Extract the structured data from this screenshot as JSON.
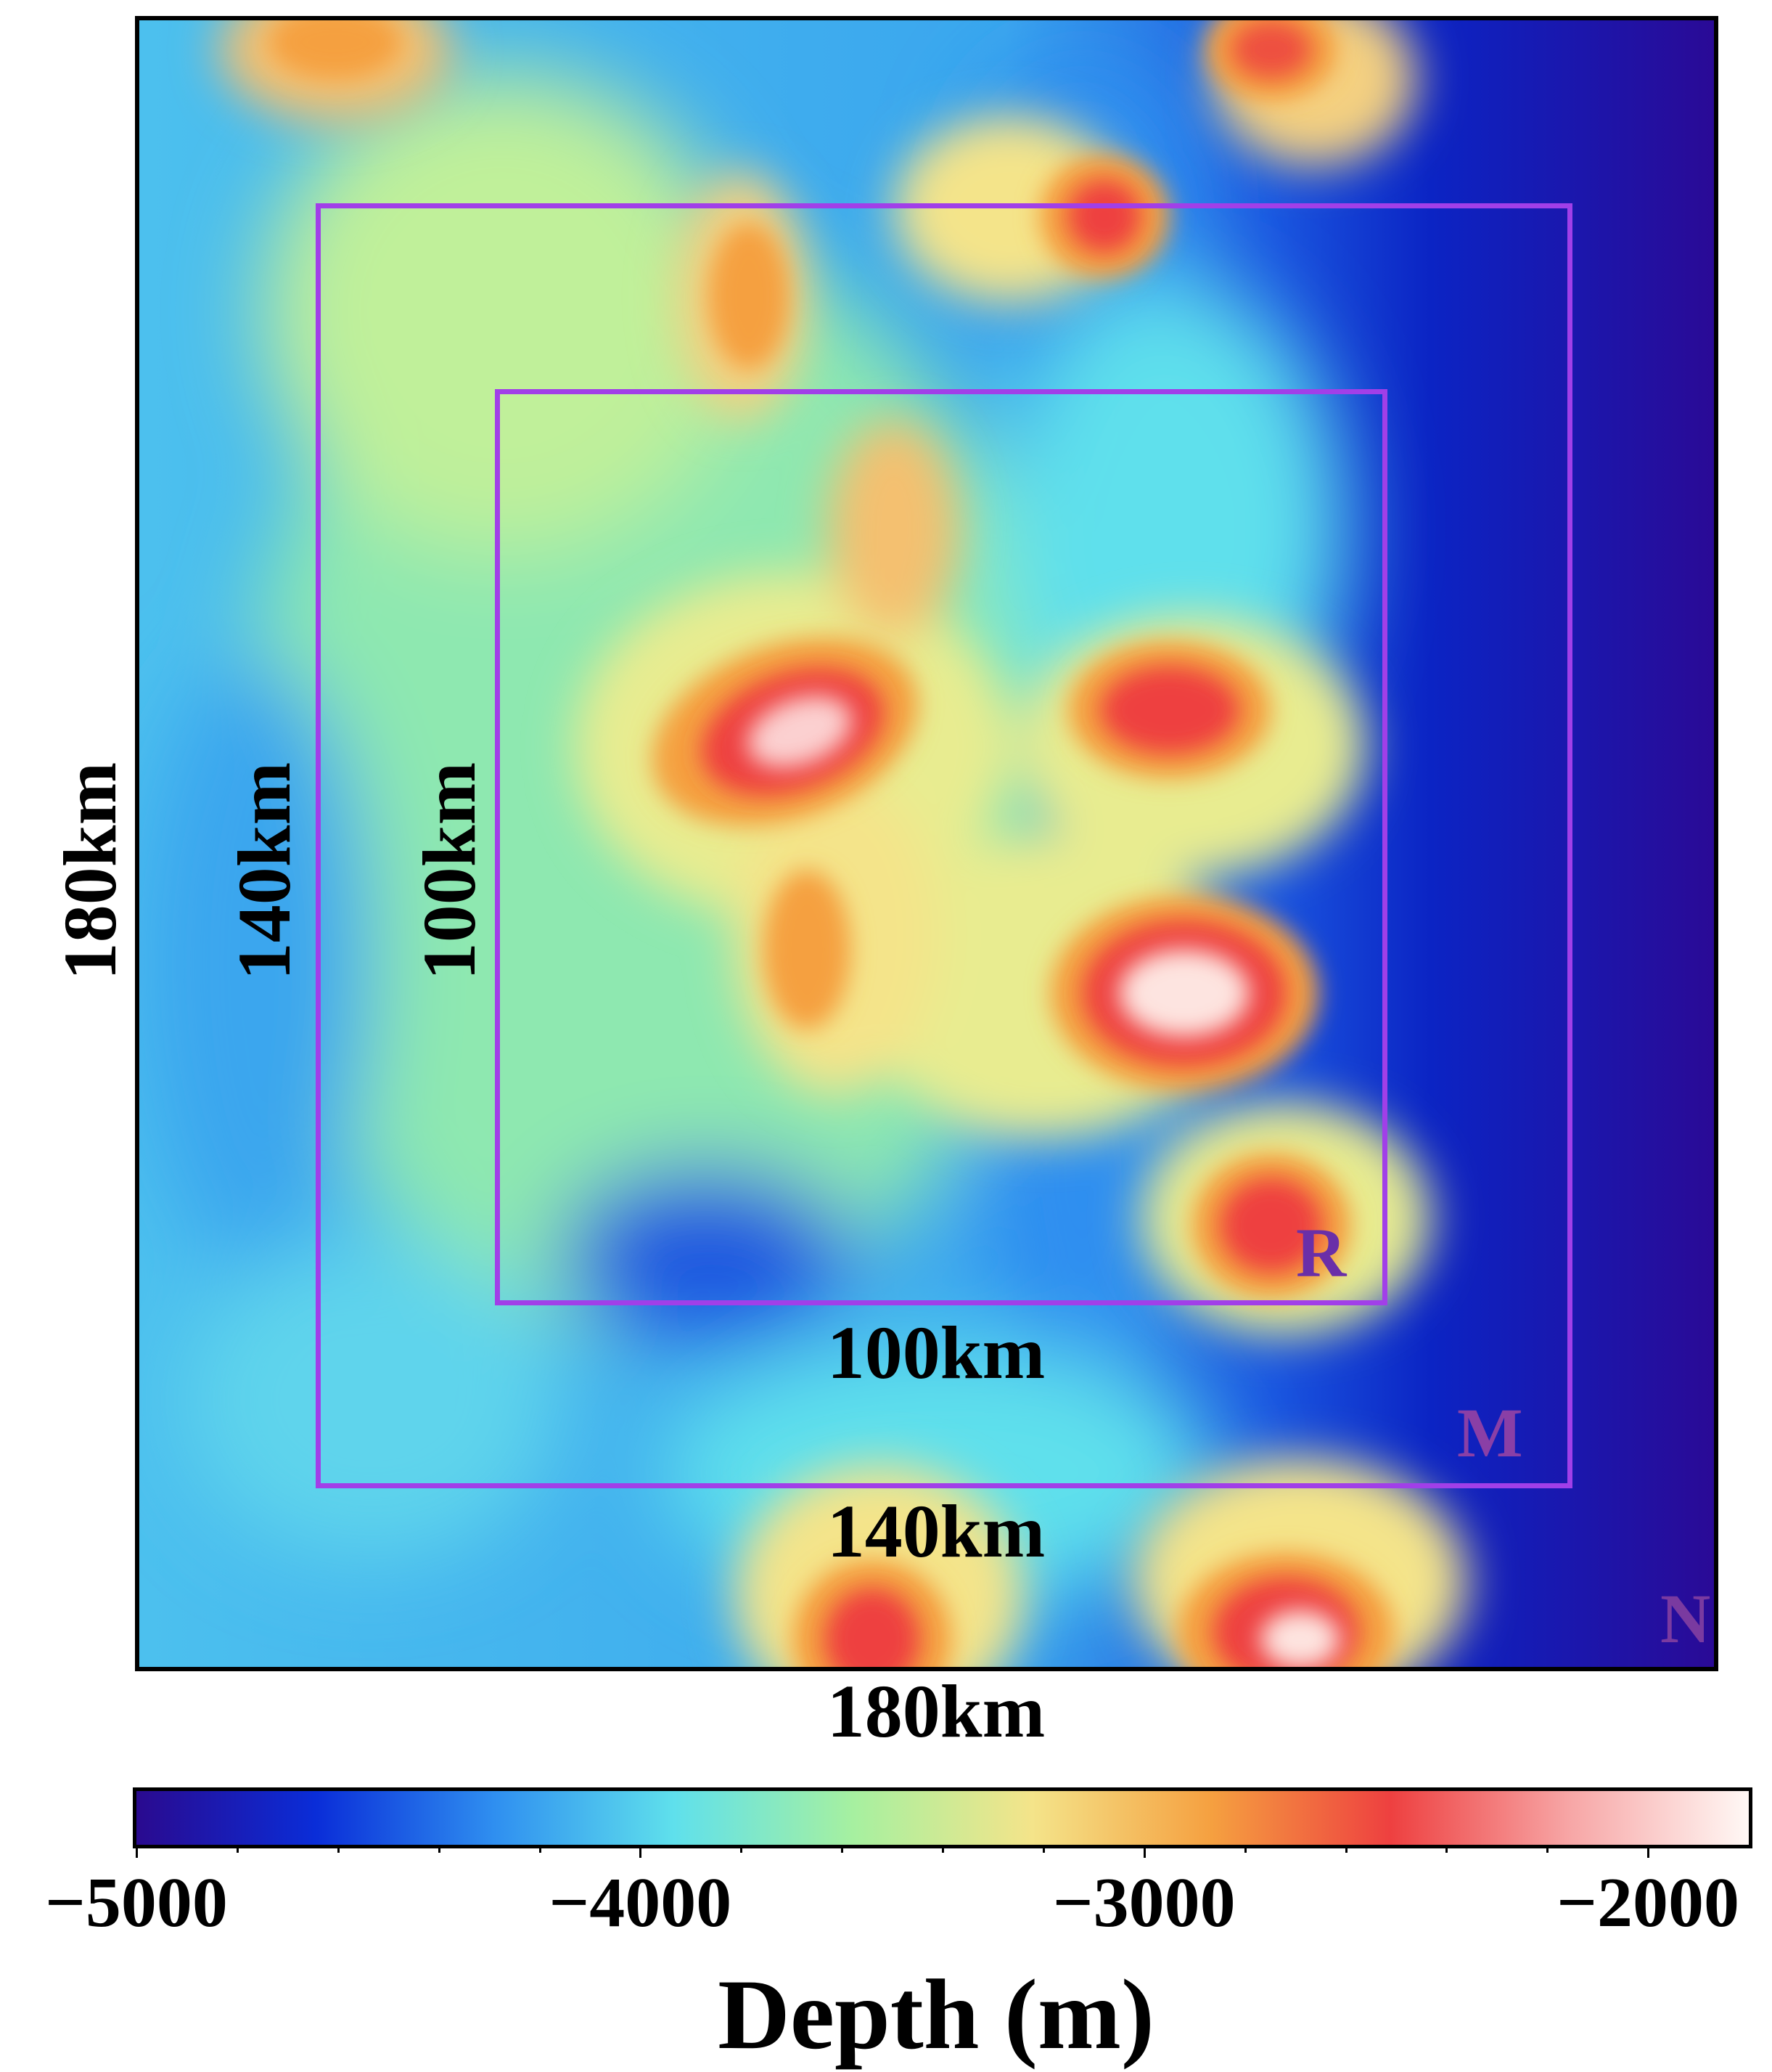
{
  "map": {
    "colormap": [
      "#2a0a8f",
      "#0a2dd8",
      "#2f8ff0",
      "#5fe0ec",
      "#a6f0a0",
      "#f4e48a",
      "#f5a040",
      "#ee4040",
      "#f7a6a6",
      "#fff8f5"
    ],
    "box_color": "#a13fe8",
    "labels": {
      "outer_side": "180km",
      "outer_bottom": "180km",
      "middle_side": "140km",
      "middle_bottom": "140km",
      "inner_side": "100km",
      "inner_bottom": "100km"
    },
    "region_letters": {
      "inner": "R",
      "middle": "M",
      "outer": "N"
    },
    "region_letter_colors": {
      "inner": "#6a2fa8",
      "middle": "#8a3fa6",
      "outer": "#7a3aa0"
    }
  },
  "colorbar": {
    "min": -5000,
    "max": -1800,
    "tick_labels": [
      "−5000",
      "−4000",
      "−3000",
      "−2000"
    ],
    "tick_values": [
      -5000,
      -4000,
      -3000,
      -2000
    ],
    "minor_tick_values": [
      -4800,
      -4600,
      -4400,
      -4200,
      -3800,
      -3600,
      -3400,
      -3200,
      -2800,
      -2600,
      -2400,
      -2200
    ],
    "title": "Depth (m)"
  }
}
